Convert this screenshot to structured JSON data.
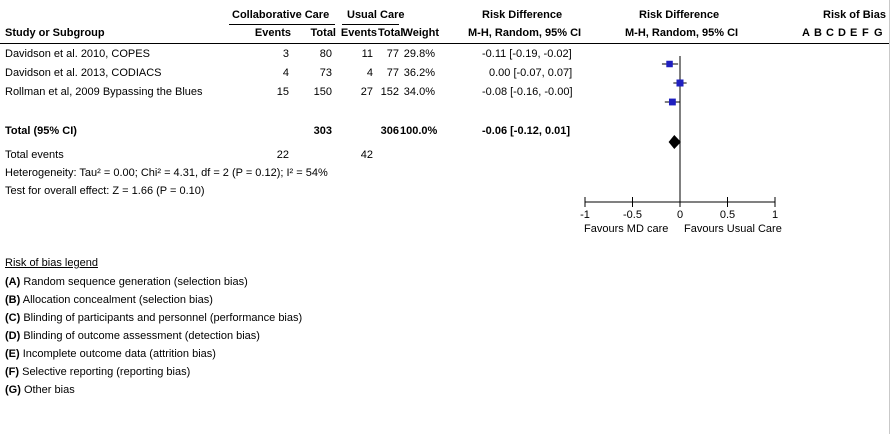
{
  "header": {
    "collab_care": "Collaborative Care",
    "usual_care": "Usual Care",
    "risk_diff_col": "Risk Difference",
    "risk_diff_plot": "Risk Difference",
    "risk_of_bias": "Risk of Bias",
    "study_or_subgroup": "Study or Subgroup",
    "events1": "Events",
    "total1": "Total",
    "events2": "Events",
    "total2": "Total",
    "weight": "Weight",
    "method_col": "M-H, Random, 95% CI",
    "method_plot": "M-H, Random, 95% CI",
    "bias_letters": [
      "A",
      "B",
      "C",
      "D",
      "E",
      "F",
      "G"
    ]
  },
  "studies": [
    {
      "name": "Davidson et al. 2010, COPES",
      "e1": "3",
      "t1": "80",
      "e2": "11",
      "t2": "77",
      "weight": "29.8%",
      "ci_text": "-0.11 [-0.19, -0.02]",
      "est": -0.11,
      "lo": -0.19,
      "hi": -0.02,
      "w": 29.8
    },
    {
      "name": "Davidson et al. 2013, CODIACS",
      "e1": "4",
      "t1": "73",
      "e2": "4",
      "t2": "77",
      "weight": "36.2%",
      "ci_text": "0.00 [-0.07, 0.07]",
      "est": 0.0,
      "lo": -0.07,
      "hi": 0.07,
      "w": 36.2
    },
    {
      "name": "Rollman et al, 2009 Bypassing the Blues",
      "e1": "15",
      "t1": "150",
      "e2": "27",
      "t2": "152",
      "weight": "34.0%",
      "ci_text": "-0.08 [-0.16, -0.00]",
      "est": -0.08,
      "lo": -0.16,
      "hi": -0.0,
      "w": 34.0
    }
  ],
  "total": {
    "label": "Total (95% CI)",
    "t1": "303",
    "t2": "306",
    "weight": "100.0%",
    "ci_text": "-0.06 [-0.12, 0.01]",
    "est": -0.06,
    "lo": -0.12,
    "hi": 0.01
  },
  "total_events": {
    "label": "Total events",
    "e1": "22",
    "e2": "42"
  },
  "heterogeneity": "Heterogeneity: Tau² = 0.00; Chi² = 4.31, df = 2 (P = 0.12); I² = 54%",
  "overall_effect": "Test for overall effect: Z = 1.66 (P = 0.10)",
  "chart_data": {
    "type": "scatter",
    "xlim": [
      -1,
      1
    ],
    "x_ticks": [
      "-1",
      "-0.5",
      "0",
      "0.5",
      "1"
    ],
    "tick_values": [
      -1,
      -0.5,
      0,
      0.5,
      1
    ],
    "favours_left": "Favours MD care",
    "favours_right": "Favours Usual Care",
    "series": [
      {
        "values": [
          -0.11,
          0.0,
          -0.08
        ],
        "lower": [
          -0.19,
          -0.07,
          -0.16
        ],
        "upper": [
          -0.02,
          0.07,
          -0.0
        ]
      }
    ],
    "pooled": {
      "value": -0.06,
      "lower": -0.12,
      "upper": 0.01
    }
  },
  "legend": {
    "title": "Risk of bias legend",
    "items": [
      {
        "key": "(A)",
        "text": " Random sequence generation (selection bias)"
      },
      {
        "key": "(B)",
        "text": " Allocation concealment (selection bias)"
      },
      {
        "key": "(C)",
        "text": " Blinding of participants and personnel (performance bias)"
      },
      {
        "key": "(D)",
        "text": " Blinding of outcome assessment (detection bias)"
      },
      {
        "key": "(E)",
        "text": " Incomplete outcome data (attrition bias)"
      },
      {
        "key": "(F)",
        "text": " Selective reporting (reporting bias)"
      },
      {
        "key": "(G)",
        "text": " Other bias"
      }
    ]
  },
  "colors": {
    "point": "#1f1fbf",
    "diamond": "#000000",
    "line": "#000000"
  }
}
